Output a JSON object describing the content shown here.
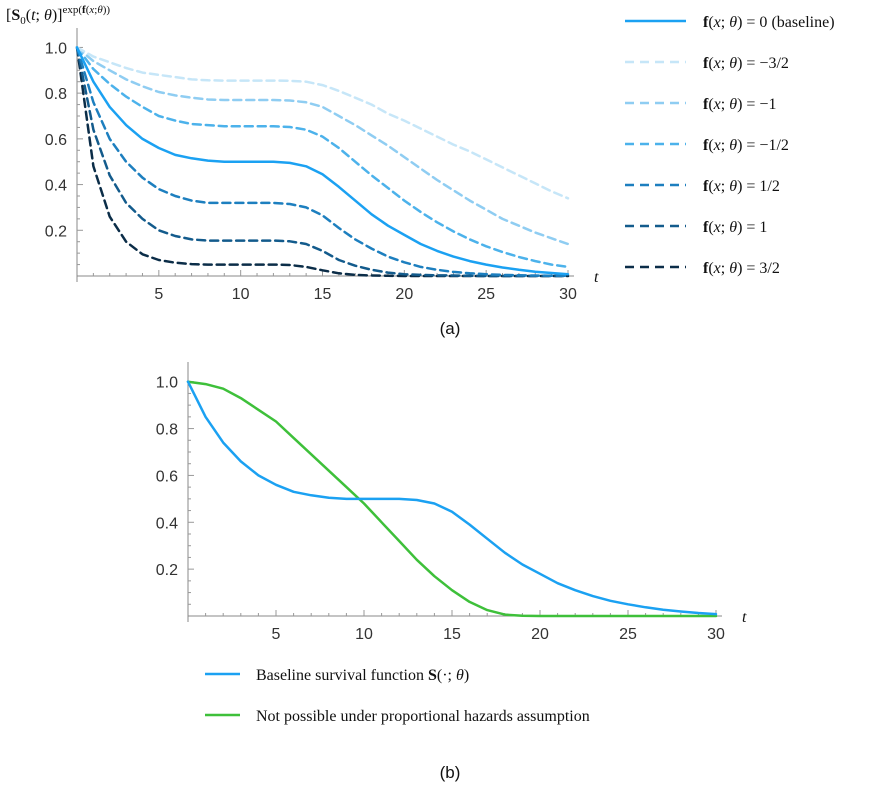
{
  "chart_data": [
    {
      "type": "line",
      "panel": "(a)",
      "ylabel": "[S0(t;θ)]^exp(f(x;θ))",
      "xlabel": "t",
      "xlim": [
        0,
        30
      ],
      "ylim": [
        0,
        1.05
      ],
      "xticks": [
        5,
        10,
        15,
        20,
        25,
        30
      ],
      "yticks": [
        0.2,
        0.4,
        0.6,
        0.8,
        1.0
      ],
      "xtick_labels": [
        "5",
        "10",
        "15",
        "20",
        "25",
        "30"
      ],
      "ytick_labels": [
        "0.2",
        "0.4",
        "0.6",
        "0.8",
        "1.0"
      ],
      "legend_position": "right",
      "x": [
        0,
        1,
        2,
        3,
        4,
        5,
        6,
        7,
        8,
        9,
        10,
        11,
        12,
        13,
        14,
        15,
        16,
        17,
        18,
        19,
        20,
        21,
        22,
        23,
        24,
        25,
        26,
        27,
        28,
        29,
        30
      ],
      "series": [
        {
          "name": "f(x;θ) = 0 (baseline)",
          "color": "#1ba1f2",
          "style": "solid",
          "values": [
            1.0,
            0.85,
            0.74,
            0.66,
            0.6,
            0.56,
            0.53,
            0.515,
            0.505,
            0.5,
            0.5,
            0.5,
            0.5,
            0.495,
            0.48,
            0.445,
            0.39,
            0.33,
            0.27,
            0.22,
            0.18,
            0.14,
            0.11,
            0.085,
            0.065,
            0.05,
            0.037,
            0.027,
            0.019,
            0.013,
            0.008
          ]
        },
        {
          "name": "f(x;θ) = -3/2",
          "color": "#c6e6f8",
          "style": "dashed",
          "values": [
            1.0,
            0.96,
            0.935,
            0.91,
            0.89,
            0.88,
            0.87,
            0.86,
            0.856,
            0.855,
            0.855,
            0.855,
            0.855,
            0.854,
            0.85,
            0.835,
            0.81,
            0.78,
            0.75,
            0.71,
            0.68,
            0.645,
            0.61,
            0.575,
            0.545,
            0.51,
            0.475,
            0.44,
            0.405,
            0.37,
            0.34
          ]
        },
        {
          "name": "f(x;θ) = -1",
          "color": "#8fcdf2",
          "style": "dashed",
          "values": [
            1.0,
            0.94,
            0.9,
            0.86,
            0.83,
            0.805,
            0.79,
            0.78,
            0.772,
            0.77,
            0.77,
            0.77,
            0.77,
            0.768,
            0.76,
            0.74,
            0.7,
            0.66,
            0.615,
            0.57,
            0.52,
            0.47,
            0.42,
            0.375,
            0.33,
            0.29,
            0.25,
            0.22,
            0.19,
            0.165,
            0.14
          ]
        },
        {
          "name": "f(x;θ) = -1/2",
          "color": "#4cb2eb",
          "style": "dashed",
          "values": [
            1.0,
            0.905,
            0.84,
            0.785,
            0.74,
            0.7,
            0.68,
            0.665,
            0.66,
            0.655,
            0.655,
            0.655,
            0.655,
            0.652,
            0.64,
            0.61,
            0.56,
            0.5,
            0.44,
            0.385,
            0.33,
            0.28,
            0.235,
            0.195,
            0.16,
            0.13,
            0.105,
            0.083,
            0.065,
            0.05,
            0.04
          ]
        },
        {
          "name": "f(x;θ) = 1/2",
          "color": "#1d7fbf",
          "style": "dashed",
          "values": [
            1.0,
            0.76,
            0.6,
            0.5,
            0.43,
            0.38,
            0.35,
            0.33,
            0.32,
            0.32,
            0.32,
            0.32,
            0.32,
            0.315,
            0.3,
            0.265,
            0.21,
            0.16,
            0.12,
            0.085,
            0.06,
            0.04,
            0.027,
            0.018,
            0.012,
            0.008,
            0.005,
            0.003,
            0.002,
            0.001,
            0.001
          ]
        },
        {
          "name": "f(x;θ) = 1",
          "color": "#135b8c",
          "style": "dashed",
          "values": [
            1.0,
            0.64,
            0.44,
            0.32,
            0.25,
            0.2,
            0.175,
            0.16,
            0.155,
            0.155,
            0.155,
            0.155,
            0.155,
            0.152,
            0.14,
            0.11,
            0.07,
            0.045,
            0.027,
            0.015,
            0.008,
            0.005,
            0.003,
            0.002,
            0.001,
            0.0,
            0.0,
            0.0,
            0.0,
            0.0,
            0.0
          ]
        },
        {
          "name": "f(x;θ) = 3/2",
          "color": "#0b2d48",
          "style": "dashed",
          "values": [
            1.0,
            0.48,
            0.26,
            0.15,
            0.095,
            0.07,
            0.058,
            0.052,
            0.05,
            0.05,
            0.05,
            0.05,
            0.05,
            0.048,
            0.04,
            0.025,
            0.012,
            0.005,
            0.002,
            0.001,
            0.0,
            0.0,
            0.0,
            0.0,
            0.0,
            0.0,
            0.0,
            0.0,
            0.0,
            0.0,
            0.0
          ]
        }
      ]
    },
    {
      "type": "line",
      "panel": "(b)",
      "xlabel": "t",
      "xlim": [
        0,
        30
      ],
      "ylim": [
        0,
        1.05
      ],
      "xticks": [
        5,
        10,
        15,
        20,
        25,
        30
      ],
      "yticks": [
        0.2,
        0.4,
        0.6,
        0.8,
        1.0
      ],
      "xtick_labels": [
        "5",
        "10",
        "15",
        "20",
        "25",
        "30"
      ],
      "ytick_labels": [
        "0.2",
        "0.4",
        "0.6",
        "0.8",
        "1.0"
      ],
      "legend_position": "bottom",
      "x": [
        0,
        1,
        2,
        3,
        4,
        5,
        6,
        7,
        8,
        9,
        10,
        11,
        12,
        13,
        14,
        15,
        16,
        17,
        18,
        19,
        20,
        21,
        22,
        23,
        24,
        25,
        26,
        27,
        28,
        29,
        30
      ],
      "series": [
        {
          "name": "Baseline survival function S(·;θ)",
          "color": "#1ba1f2",
          "style": "solid",
          "values": [
            1.0,
            0.85,
            0.74,
            0.66,
            0.6,
            0.56,
            0.53,
            0.515,
            0.505,
            0.5,
            0.5,
            0.5,
            0.5,
            0.495,
            0.48,
            0.445,
            0.39,
            0.33,
            0.27,
            0.22,
            0.18,
            0.14,
            0.11,
            0.085,
            0.065,
            0.05,
            0.037,
            0.027,
            0.019,
            0.013,
            0.008
          ]
        },
        {
          "name": "Not possible under proportional hazards assumption",
          "color": "#3ec03a",
          "style": "solid",
          "values": [
            1.0,
            0.99,
            0.97,
            0.93,
            0.88,
            0.83,
            0.76,
            0.69,
            0.62,
            0.55,
            0.48,
            0.4,
            0.32,
            0.24,
            0.17,
            0.11,
            0.06,
            0.025,
            0.006,
            0.001,
            0.0,
            0.0,
            0.0,
            0.0,
            0.0,
            0.0,
            0.0,
            0.0,
            0.0,
            0.0,
            0.0
          ]
        }
      ]
    }
  ],
  "captions": {
    "a": "(a)",
    "b": "(b)"
  },
  "legend_a": {
    "baseline_suffix": "(baseline)",
    "entries": [
      "= 0",
      "= −3/2",
      "= −1",
      "= −1/2",
      "= 1/2",
      "= 1",
      "= 3/2"
    ]
  },
  "legend_b": {
    "entries": [
      "Baseline survival function",
      "Not possible under proportional hazards assumption"
    ]
  }
}
